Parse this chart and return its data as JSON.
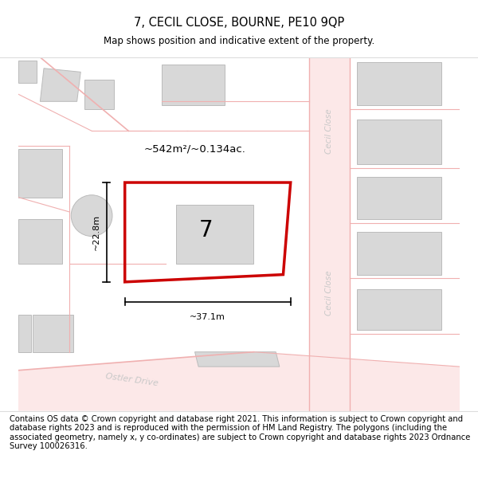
{
  "title": "7, CECIL CLOSE, BOURNE, PE10 9QP",
  "subtitle": "Map shows position and indicative extent of the property.",
  "footer": "Contains OS data © Crown copyright and database right 2021. This information is subject to Crown copyright and database rights 2023 and is reproduced with the permission of HM Land Registry. The polygons (including the associated geometry, namely x, y co-ordinates) are subject to Crown copyright and database rights 2023 Ordnance Survey 100026316.",
  "bg_color": "#ffffff",
  "road_color": "#f0b0b0",
  "building_color": "#d8d8d8",
  "building_edge_color": "#bbbbbb",
  "plot_edge_color": "#cc0000",
  "dim_color": "#000000",
  "street_color": "#c8c8c8",
  "title_fontsize": 10.5,
  "subtitle_fontsize": 8.5,
  "footer_fontsize": 7.2
}
